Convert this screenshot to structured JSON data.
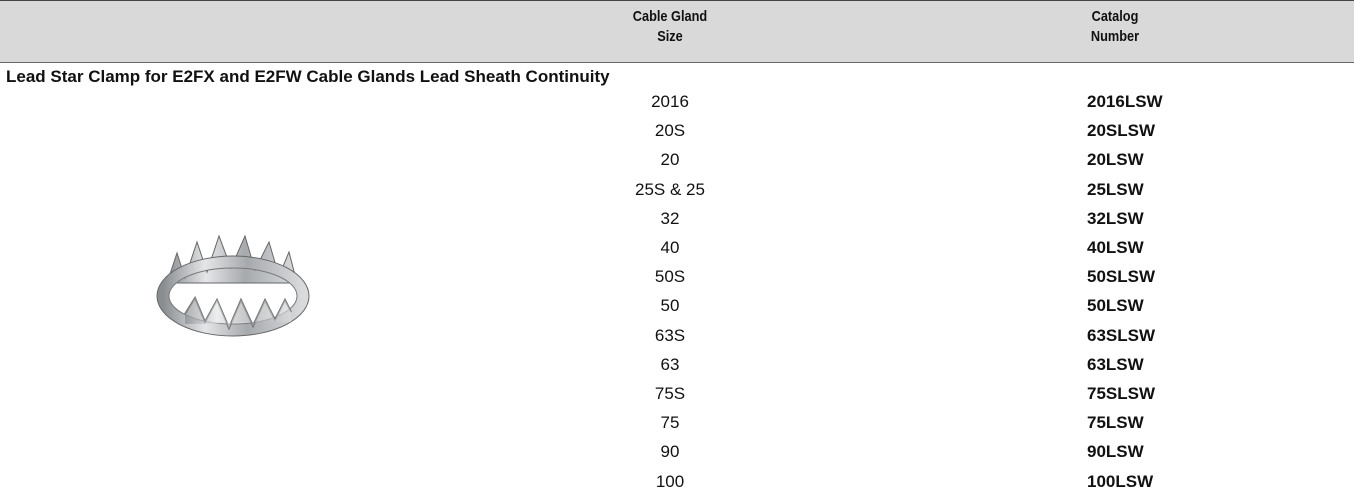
{
  "table": {
    "header": {
      "size": [
        "Cable Gland",
        "Size"
      ],
      "catalog": [
        "Catalog",
        "Number"
      ]
    },
    "section": "Lead Star Clamp for E2FX and E2FW Cable Glands Lead Sheath Continuity",
    "rows": [
      [
        "2016",
        "2016LSW"
      ],
      [
        "20S",
        "20SLSW"
      ],
      [
        "20",
        "20LSW"
      ],
      [
        "25S & 25",
        "25LSW"
      ],
      [
        "32",
        "32LSW"
      ],
      [
        "40",
        "40LSW"
      ],
      [
        "50S",
        "50SLSW"
      ],
      [
        "50",
        "50LSW"
      ],
      [
        "63S",
        "63SLSW"
      ],
      [
        "63",
        "63LSW"
      ],
      [
        "75S",
        "75SLSW"
      ],
      [
        "75",
        "75LSW"
      ],
      [
        "90",
        "90LSW"
      ],
      [
        "100",
        "100LSW"
      ]
    ]
  }
}
